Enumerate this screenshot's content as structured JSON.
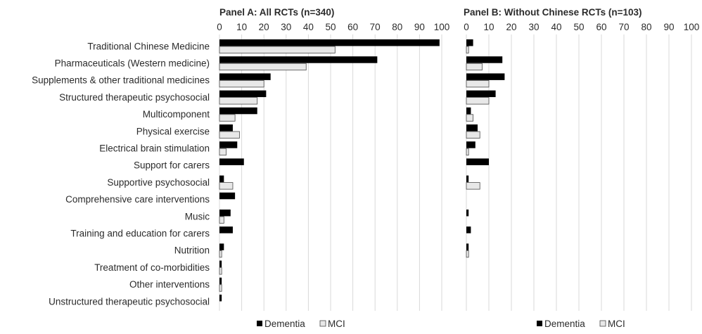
{
  "chart_data": {
    "type": "bar",
    "orientation": "horizontal",
    "grid": true,
    "legend_position": "bottom",
    "colors": {
      "Dementia": "#000000",
      "MCI": "#e8e8e8",
      "MCI_border": "#4a4a4a",
      "grid": "#d9d9d9"
    },
    "categories": [
      "Traditional Chinese Medicine",
      "Pharmaceuticals (Western medicine)",
      "Supplements & other traditional medicines",
      "Structured therapeutic psychosocial",
      "Multicomponent",
      "Physical exercise",
      "Electrical brain stimulation",
      "Support for carers",
      "Supportive psychosocial",
      "Comprehensive care interventions",
      "Music",
      "Training and education for carers",
      "Nutrition",
      "Treatment of co-morbidities",
      "Other interventions",
      "Unstructured therapeutic psychosocial"
    ],
    "panels": [
      {
        "title": "Panel A: All RCTs (n=340)",
        "xlim": [
          0,
          100
        ],
        "ticks": [
          0,
          10,
          20,
          30,
          40,
          50,
          60,
          70,
          80,
          90,
          100
        ],
        "series": [
          {
            "name": "Dementia",
            "values": [
              99,
              71,
              23,
              21,
              17,
              6,
              8,
              11,
              2,
              7,
              5,
              6,
              2,
              1,
              1,
              1
            ]
          },
          {
            "name": "MCI",
            "values": [
              52,
              39,
              20,
              17,
              7,
              9,
              3,
              0,
              6,
              0,
              2,
              0,
              1,
              1,
              1,
              0
            ]
          }
        ]
      },
      {
        "title": "Panel B: Without Chinese RCTs (n=103)",
        "xlim": [
          0,
          100
        ],
        "ticks": [
          0,
          10,
          20,
          30,
          40,
          50,
          60,
          70,
          80,
          90,
          100
        ],
        "series": [
          {
            "name": "Dementia",
            "values": [
              3,
              16,
              17,
              13,
              2,
              5,
              4,
              10,
              1,
              0,
              1,
              2,
              1,
              0,
              0,
              0
            ]
          },
          {
            "name": "MCI",
            "values": [
              1,
              7,
              10,
              10,
              3,
              6,
              1,
              0,
              6,
              0,
              0,
              0,
              1,
              0,
              0,
              0
            ]
          }
        ]
      }
    ]
  }
}
